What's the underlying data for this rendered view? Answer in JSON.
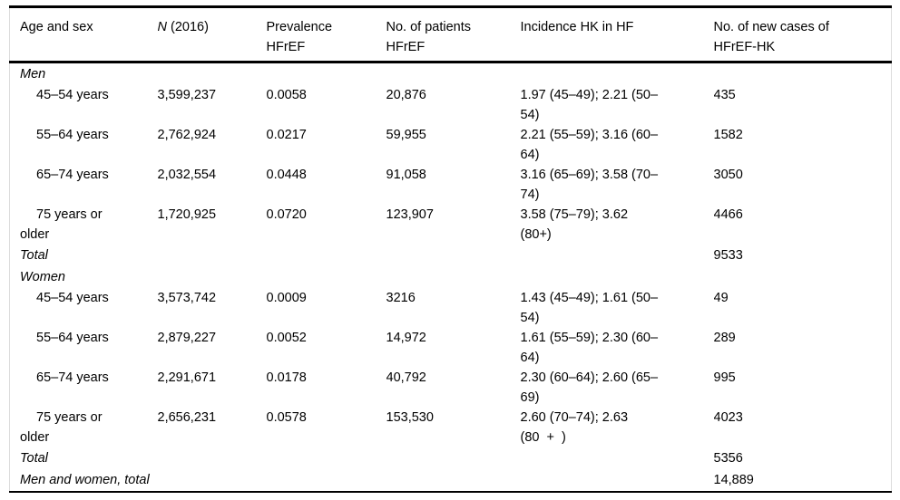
{
  "table": {
    "header": {
      "col1": "Age and sex",
      "col2_italic": "N",
      "col2_rest": " (2016)",
      "col3_line1": "Prevalence",
      "col3_line2": "HFrEF",
      "col4_line1": "No. of patients",
      "col4_line2": "HFrEF",
      "col5": "Incidence HK in HF",
      "col6_line1": "No. of new cases of",
      "col6_line2": "HFrEF-HK"
    },
    "men": {
      "label": "Men",
      "rows": [
        {
          "age1": "45–54 years",
          "age2": "",
          "n": "3,599,237",
          "prevalence": "0.0058",
          "patients": "20,876",
          "inc1": "1.97 (45–49); 2.21 (50–",
          "inc2": "54)",
          "cases": "435"
        },
        {
          "age1": "55–64 years",
          "age2": "",
          "n": "2,762,924",
          "prevalence": "0.0217",
          "patients": "59,955",
          "inc1": "2.21 (55–59); 3.16 (60–",
          "inc2": "64)",
          "cases": "1582"
        },
        {
          "age1": "65–74 years",
          "age2": "",
          "n": "2,032,554",
          "prevalence": "0.0448",
          "patients": "91,058",
          "inc1": "3.16 (65–69); 3.58 (70–",
          "inc2": "74)",
          "cases": "3050"
        },
        {
          "age1": "75 years or",
          "age2": "older",
          "n": "1,720,925",
          "prevalence": "0.0720",
          "patients": "123,907",
          "inc1": "3.58 (75–79); 3.62",
          "inc2": "(80+)",
          "cases": "4466"
        }
      ],
      "total_label": "Total",
      "total_cases": "9533"
    },
    "women": {
      "label": "Women",
      "rows": [
        {
          "age1": "45–54 years",
          "age2": "",
          "n": "3,573,742",
          "prevalence": "0.0009",
          "patients": "3216",
          "inc1": "1.43 (45–49); 1.61 (50–",
          "inc2": "54)",
          "cases": "49"
        },
        {
          "age1": "55–64 years",
          "age2": "",
          "n": "2,879,227",
          "prevalence": "0.0052",
          "patients": "14,972",
          "inc1": "1.61 (55–59); 2.30 (60–",
          "inc2": "64)",
          "cases": "289"
        },
        {
          "age1": "65–74 years",
          "age2": "",
          "n": "2,291,671",
          "prevalence": "0.0178",
          "patients": "40,792",
          "inc1": "2.30 (60–64); 2.60 (65–",
          "inc2": "69)",
          "cases": "995"
        },
        {
          "age1": "75 years or",
          "age2": "older",
          "n": "2,656,231",
          "prevalence": "0.0578",
          "patients": "153,530",
          "inc1": "2.60 (70–74); 2.63",
          "inc2": "(80  +  )",
          "cases": "4023"
        }
      ],
      "total_label": "Total",
      "total_cases": "5356"
    },
    "grand_total_label": "Men and women, total",
    "grand_total_cases": "14,889"
  }
}
